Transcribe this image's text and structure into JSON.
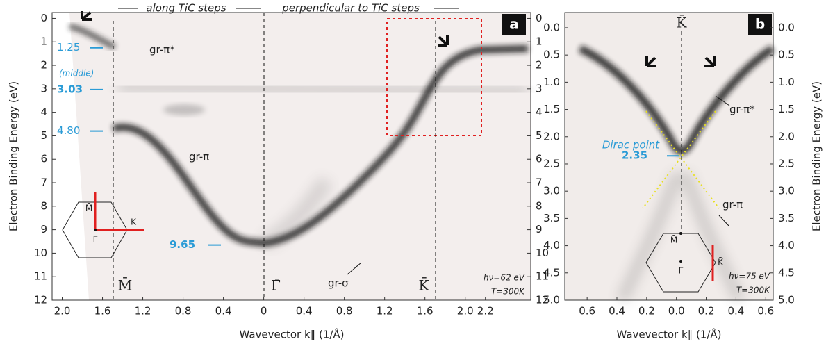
{
  "chart_data": [
    {
      "type": "image",
      "panel_label": "a",
      "headers": [
        "along TiC steps",
        "perpendicular to TiC steps"
      ],
      "x_label": "Wavevector k∥ (1/Å)",
      "y_label": "Electron Binding Energy (eV)",
      "xlim": [
        -2.1,
        2.65
      ],
      "ylim": [
        12,
        -0.25
      ],
      "xticks": [
        {
          "value": -2.0,
          "label": "2.0"
        },
        {
          "value": -1.6,
          "label": "1.6"
        },
        {
          "value": -1.2,
          "label": "1.2"
        },
        {
          "value": -0.8,
          "label": "0.8"
        },
        {
          "value": -0.4,
          "label": "0.4"
        },
        0,
        0.4,
        0.8,
        1.2,
        1.6,
        {
          "value": 2.0,
          "label": "2.0"
        },
        2.2
      ],
      "yticks": [
        0,
        1,
        2,
        3,
        4,
        5,
        6,
        7,
        8,
        9,
        10,
        11,
        12
      ],
      "level_markers": [
        {
          "value": 1.25,
          "label": "1.25"
        },
        {
          "value": 3.03,
          "label": "3.03"
        },
        {
          "value": 4.8,
          "label": "4.80"
        },
        {
          "value": 9.65,
          "label": "9.65"
        }
      ],
      "annotations": [
        "gr-π*",
        "(middle)",
        "gr-π",
        "gr-σ",
        "hν=62 eV",
        "T=300K",
        "M̄",
        "Γ̄",
        "K̄"
      ],
      "inset_labels": [
        "M̄",
        "K̄",
        "Γ̄"
      ]
    },
    {
      "type": "image",
      "panel_label": "b",
      "x_label": "Wavevector k∥ (1/Å)",
      "y_label": "Electron Binding Energy (eV)",
      "xlim": [
        -0.75,
        0.65
      ],
      "ylim": [
        5,
        -0.28
      ],
      "xticks": [
        {
          "value": -0.6,
          "label": "0.6"
        },
        {
          "value": -0.4,
          "label": "0.4"
        },
        {
          "value": -0.2,
          "label": "0.2"
        },
        {
          "value": 0,
          "label": "0.0"
        },
        0.2,
        0.4,
        0.6
      ],
      "yticks": [
        {
          "value": 0,
          "label": "0.0"
        },
        0.5,
        {
          "value": 1,
          "label": "1.0"
        },
        1.5,
        {
          "value": 2,
          "label": "2.0"
        },
        2.5,
        {
          "value": 3,
          "label": "3.0"
        },
        3.5,
        {
          "value": 4,
          "label": "4.0"
        },
        4.5,
        {
          "value": 5,
          "label": "5.0"
        }
      ],
      "level_markers": [
        {
          "value": 2.35,
          "label": "2.35"
        }
      ],
      "annotations": [
        "K̄",
        "gr-π*",
        "Dirac point",
        "gr-π",
        "hν=75 eV",
        "T=300K"
      ],
      "inset_labels": [
        "M̄",
        "K̄",
        "Γ̄"
      ]
    }
  ]
}
